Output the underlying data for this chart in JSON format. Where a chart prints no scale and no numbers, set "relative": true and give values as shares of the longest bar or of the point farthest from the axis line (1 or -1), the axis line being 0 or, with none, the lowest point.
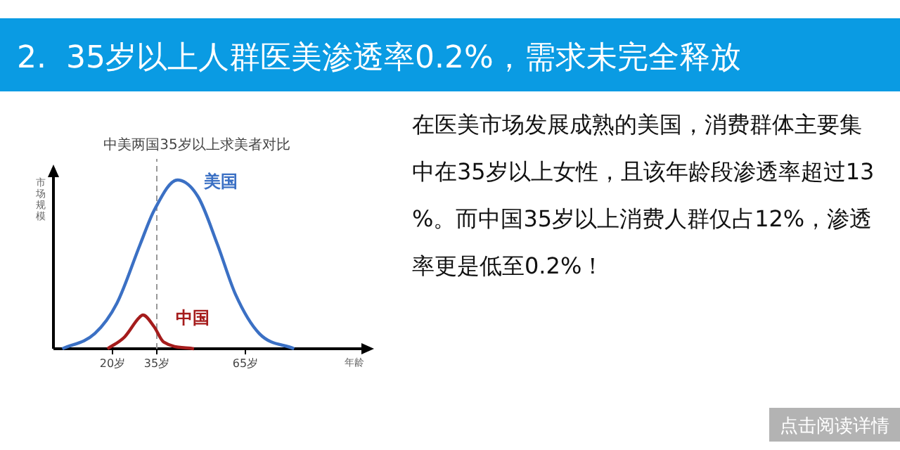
{
  "chart_data": {
    "type": "line",
    "title": "2.  35岁以上人群医美渗透率0.2%，需求未完全释放",
    "subtitle": "中美两国35岁以上求美者对比",
    "xlabel": "年龄",
    "ylabel": "市场规模",
    "relative": true,
    "xlim": [
      0,
      105
    ],
    "xticks": [
      {
        "value": 20,
        "label": "20岁"
      },
      {
        "value": 35,
        "label": "35岁"
      },
      {
        "value": 65,
        "label": "65岁"
      }
    ],
    "ref_lines": [
      {
        "axis": "x",
        "value": 35,
        "color": "#999999",
        "line_style": "dashed"
      }
    ],
    "series": [
      {
        "name": "美国",
        "color": "#3b70c4",
        "x": [
          3,
          14,
          21.5,
          29.4,
          34.1,
          42,
          49,
          55.5,
          61.7,
          69.7,
          81.5
        ],
        "values": [
          0,
          0.09,
          0.27,
          0.62,
          0.82,
          1,
          0.9,
          0.62,
          0.32,
          0.09,
          0
        ]
      },
      {
        "name": "中国",
        "color": "#a51c1c",
        "x": [
          18.3,
          24.1,
          28.8,
          30.3,
          34.1,
          37.3,
          47.6
        ],
        "values": [
          0,
          0.07,
          0.18,
          0.2,
          0.13,
          0.04,
          0
        ]
      }
    ],
    "annotations": [
      "在医美市场发展成熟的美国，消费群体主要集中在35岁以上女性，且该年龄段渗透率超过13%。而中国35岁以上消费人群仅占12%，渗透率更是低至0.2%！",
      "点击阅读详情"
    ]
  }
}
